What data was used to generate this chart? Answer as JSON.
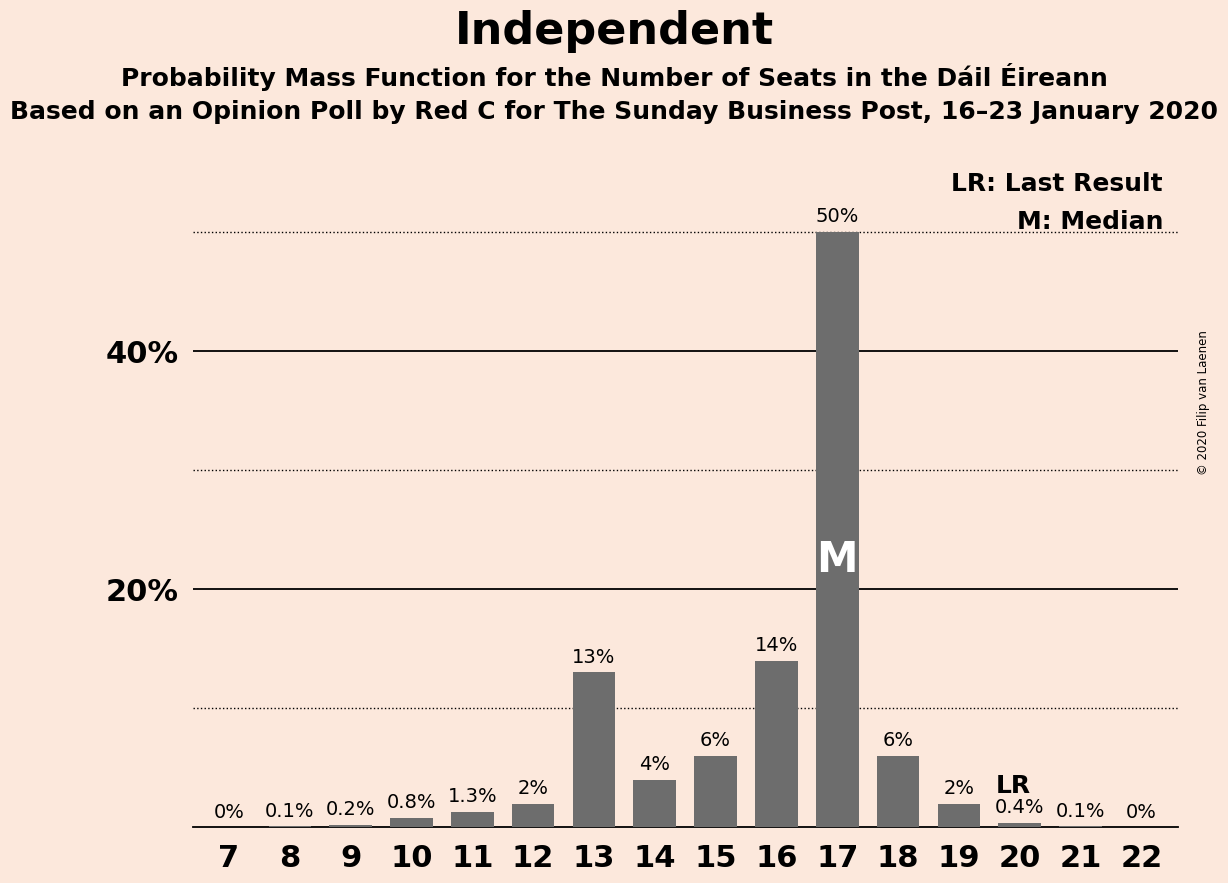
{
  "title": "Independent",
  "subtitle1": "Probability Mass Function for the Number of Seats in the Dáil Éireann",
  "subtitle2": "Based on an Opinion Poll by Red C for The Sunday Business Post, 16–23 January 2020",
  "copyright": "© 2020 Filip van Laenen",
  "categories": [
    7,
    8,
    9,
    10,
    11,
    12,
    13,
    14,
    15,
    16,
    17,
    18,
    19,
    20,
    21,
    22
  ],
  "values": [
    0.0,
    0.1,
    0.2,
    0.8,
    1.3,
    2.0,
    13.0,
    4.0,
    6.0,
    14.0,
    50.0,
    6.0,
    2.0,
    0.4,
    0.1,
    0.0
  ],
  "labels": [
    "0%",
    "0.1%",
    "0.2%",
    "0.8%",
    "1.3%",
    "2%",
    "13%",
    "4%",
    "6%",
    "14%",
    "50%",
    "6%",
    "2%",
    "0.4%",
    "0.1%",
    "0%"
  ],
  "bar_color": "#6d6d6d",
  "background_color": "#fce8dc",
  "median_bar": 17,
  "last_result_bar": 19,
  "median_label": "M",
  "last_result_label": "LR",
  "legend_lr": "LR: Last Result",
  "legend_m": "M: Median",
  "solid_lines": [
    20,
    40
  ],
  "dotted_lines": [
    10,
    30,
    50
  ],
  "ylim": [
    0,
    57
  ],
  "title_fontsize": 32,
  "subtitle_fontsize": 18,
  "axis_label_fontsize": 22,
  "bar_label_fontsize": 14,
  "legend_fontsize": 18,
  "median_label_fontsize": 30
}
